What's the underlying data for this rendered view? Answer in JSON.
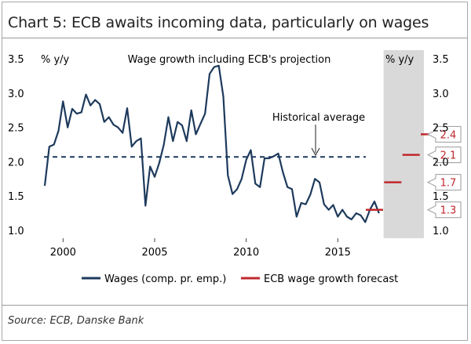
{
  "title": "Chart 5: ECB awaits incoming data, particularly on wages",
  "source": "Source: ECB, Danske Bank",
  "chart_data": {
    "type": "line",
    "title": "Wage growth including ECB's projection",
    "ylabel_left": "% y/y",
    "ylabel_right": "% y/y",
    "ylim": [
      1.0,
      3.5
    ],
    "yticks": [
      "1.0",
      "1.5",
      "2.0",
      "2.5",
      "3.0",
      "3.5"
    ],
    "xlim": [
      1998.7,
      2019.7
    ],
    "xticks": [
      "2000",
      "2005",
      "2010",
      "2015"
    ],
    "forecast_region": [
      2017.5,
      2019.7
    ],
    "historical_average": {
      "value": 2.07,
      "label": "Historical average"
    },
    "series": [
      {
        "name": "Wages (comp. pr. emp.)",
        "color": "#1d3a5c",
        "x": [
          1999.0,
          1999.25,
          1999.5,
          1999.75,
          2000.0,
          2000.25,
          2000.5,
          2000.75,
          2001.0,
          2001.25,
          2001.5,
          2001.75,
          2002.0,
          2002.25,
          2002.5,
          2002.75,
          2003.0,
          2003.25,
          2003.5,
          2003.75,
          2004.0,
          2004.25,
          2004.5,
          2004.75,
          2005.0,
          2005.25,
          2005.5,
          2005.75,
          2006.0,
          2006.25,
          2006.5,
          2006.75,
          2007.0,
          2007.25,
          2007.5,
          2007.75,
          2008.0,
          2008.25,
          2008.5,
          2008.75,
          2009.0,
          2009.25,
          2009.5,
          2009.75,
          2010.0,
          2010.25,
          2010.5,
          2010.75,
          2011.0,
          2011.25,
          2011.5,
          2011.75,
          2012.0,
          2012.25,
          2012.5,
          2012.75,
          2013.0,
          2013.25,
          2013.5,
          2013.75,
          2014.0,
          2014.25,
          2014.5,
          2014.75,
          2015.0,
          2015.25,
          2015.5,
          2015.75,
          2016.0,
          2016.25,
          2016.5,
          2016.75,
          2017.0,
          2017.25
        ],
        "values": [
          1.65,
          2.22,
          2.25,
          2.45,
          2.88,
          2.5,
          2.77,
          2.7,
          2.72,
          2.98,
          2.82,
          2.9,
          2.84,
          2.58,
          2.65,
          2.54,
          2.5,
          2.42,
          2.78,
          2.22,
          2.3,
          2.34,
          1.36,
          1.93,
          1.78,
          1.98,
          2.25,
          2.65,
          2.3,
          2.58,
          2.53,
          2.3,
          2.75,
          2.4,
          2.55,
          2.7,
          3.28,
          3.38,
          3.4,
          2.95,
          1.8,
          1.53,
          1.6,
          1.75,
          2.03,
          2.17,
          1.68,
          1.63,
          2.05,
          2.05,
          2.08,
          2.12,
          1.85,
          1.63,
          1.6,
          1.2,
          1.4,
          1.38,
          1.52,
          1.75,
          1.7,
          1.38,
          1.3,
          1.37,
          1.2,
          1.3,
          1.2,
          1.16,
          1.25,
          1.22,
          1.12,
          1.3,
          1.42,
          1.25
        ]
      },
      {
        "name": "ECB wage growth forecast",
        "color": "#c0282d",
        "points": [
          {
            "x": 2017.0,
            "value": 1.3,
            "label": "1.3"
          },
          {
            "x": 2018.0,
            "value": 1.7,
            "label": "1.7"
          },
          {
            "x": 2019.0,
            "value": 2.1,
            "label": "2.1"
          },
          {
            "x": 2020.0,
            "value": 2.4,
            "label": "2.4"
          }
        ]
      }
    ],
    "legend": [
      {
        "label": "Wages (comp. pr. emp.)",
        "color": "#1d3a5c"
      },
      {
        "label": "ECB wage growth forecast",
        "color": "#c0282d"
      }
    ],
    "legend_position": "bottom"
  }
}
